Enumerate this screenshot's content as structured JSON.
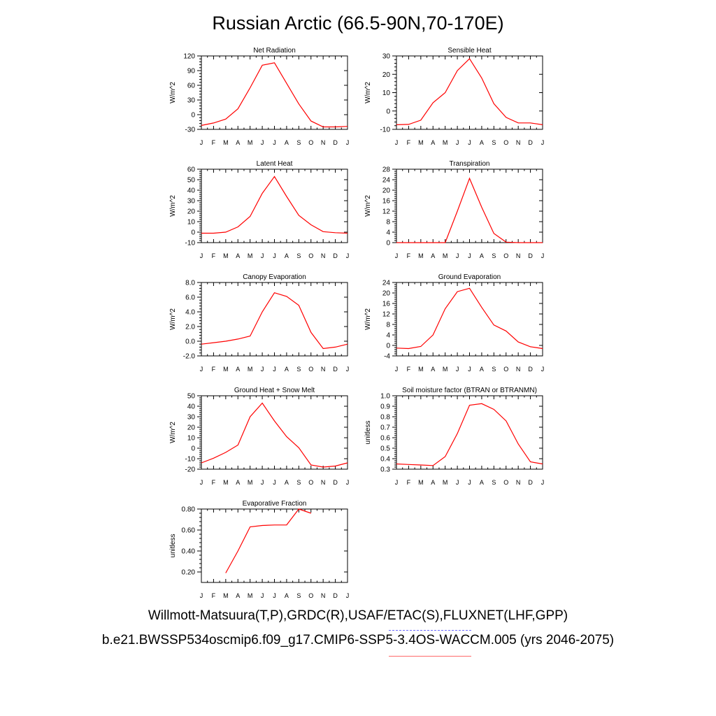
{
  "title": "Russian Arctic (66.5-90N,70-170E)",
  "legend": {
    "observations": "Willmott-Matsuura(T,P),GRDC(R),USAF/ETAC(S),FLUXNET(LHF,GPP)",
    "model": "b.e21.BWSSP534oscmip6.f09_g17.CMIP6-SSP5-3.4OS-WACCM.005 (yrs 2046-2075)",
    "observations_color": "#6b6bff",
    "model_color": "#ff0000"
  },
  "chart_data": [
    {
      "type": "line",
      "title": "Net Radiation",
      "ylabel": "W/m^2",
      "x": [
        "J",
        "F",
        "M",
        "A",
        "M",
        "J",
        "J",
        "A",
        "S",
        "O",
        "N",
        "D",
        "J"
      ],
      "ylim": [
        -30,
        120
      ],
      "yticks": [
        -30,
        0,
        30,
        60,
        90,
        120
      ],
      "ytick_labels": [
        "-30",
        "0",
        "30",
        "60",
        "90",
        "120"
      ],
      "series": [
        {
          "values": [
            -22,
            -17,
            -9,
            12,
            55,
            101,
            106,
            64,
            22,
            -13,
            -25,
            -25,
            -24
          ]
        }
      ]
    },
    {
      "type": "line",
      "title": "Sensible Heat",
      "ylabel": "W/m^2",
      "x": [
        "J",
        "F",
        "M",
        "A",
        "M",
        "J",
        "J",
        "A",
        "S",
        "O",
        "N",
        "D",
        "J"
      ],
      "ylim": [
        -10,
        30
      ],
      "yticks": [
        -10,
        0,
        10,
        20,
        30
      ],
      "ytick_labels": [
        "-10",
        "0",
        "10",
        "20",
        "30"
      ],
      "series": [
        {
          "values": [
            -7.5,
            -7.3,
            -5,
            4.5,
            10,
            22,
            28.5,
            18,
            4,
            -3.5,
            -6.5,
            -6.5,
            -7.5
          ]
        }
      ]
    },
    {
      "type": "line",
      "title": "Latent Heat",
      "ylabel": "W/m^2",
      "x": [
        "J",
        "F",
        "M",
        "A",
        "M",
        "J",
        "J",
        "A",
        "S",
        "O",
        "N",
        "D",
        "J"
      ],
      "ylim": [
        -10,
        60
      ],
      "yticks": [
        -10,
        0,
        10,
        20,
        30,
        40,
        50,
        60
      ],
      "ytick_labels": [
        "-10",
        "0",
        "10",
        "20",
        "30",
        "40",
        "50",
        "60"
      ],
      "series": [
        {
          "values": [
            -1,
            -1,
            0,
            5,
            15,
            37,
            53,
            34,
            16,
            7,
            0.5,
            -0.5,
            -1
          ]
        }
      ]
    },
    {
      "type": "line",
      "title": "Transpiration",
      "ylabel": "W/m^2",
      "x": [
        "J",
        "F",
        "M",
        "A",
        "M",
        "J",
        "J",
        "A",
        "S",
        "O",
        "N",
        "D",
        "J"
      ],
      "ylim": [
        0,
        28
      ],
      "yticks": [
        0,
        4,
        8,
        12,
        16,
        20,
        24,
        28
      ],
      "ytick_labels": [
        "0",
        "4",
        "8",
        "12",
        "16",
        "20",
        "24",
        "28"
      ],
      "series": [
        {
          "values": [
            0,
            0,
            0,
            0,
            0,
            12,
            24.5,
            13.5,
            3.5,
            0.2,
            0,
            0,
            0
          ]
        }
      ]
    },
    {
      "type": "line",
      "title": "Canopy Evaporation",
      "ylabel": "W/m^2",
      "x": [
        "J",
        "F",
        "M",
        "A",
        "M",
        "J",
        "J",
        "A",
        "S",
        "O",
        "N",
        "D",
        "J"
      ],
      "ylim": [
        -2,
        8
      ],
      "yticks": [
        -2,
        0,
        2,
        4,
        6,
        8
      ],
      "ytick_labels": [
        "-2.0",
        "0.0",
        "2.0",
        "4.0",
        "6.0",
        "8.0"
      ],
      "series": [
        {
          "values": [
            -0.4,
            -0.2,
            0,
            0.3,
            0.7,
            4,
            6.6,
            6.1,
            4.9,
            1.2,
            -1,
            -0.8,
            -0.4
          ]
        }
      ]
    },
    {
      "type": "line",
      "title": "Ground Evaporation",
      "ylabel": "W/m^2",
      "x": [
        "J",
        "F",
        "M",
        "A",
        "M",
        "J",
        "J",
        "A",
        "S",
        "O",
        "N",
        "D",
        "J"
      ],
      "ylim": [
        -4,
        24
      ],
      "yticks": [
        -4,
        0,
        4,
        8,
        12,
        16,
        20,
        24
      ],
      "ytick_labels": [
        "-4",
        "0",
        "4",
        "8",
        "12",
        "16",
        "20",
        "24"
      ],
      "series": [
        {
          "values": [
            -1,
            -1.2,
            -0.4,
            4,
            14,
            20.5,
            21.8,
            14.5,
            7.8,
            5.5,
            1.3,
            -0.5,
            -1.2
          ]
        }
      ]
    },
    {
      "type": "line",
      "title": "Ground Heat + Snow Melt",
      "ylabel": "W/m^2",
      "x": [
        "J",
        "F",
        "M",
        "A",
        "M",
        "J",
        "J",
        "A",
        "S",
        "O",
        "N",
        "D",
        "J"
      ],
      "ylim": [
        -20,
        50
      ],
      "yticks": [
        -20,
        -10,
        0,
        10,
        20,
        30,
        40,
        50
      ],
      "ytick_labels": [
        "-20",
        "-10",
        "0",
        "10",
        "20",
        "30",
        "40",
        "50"
      ],
      "series": [
        {
          "values": [
            -14,
            -9.5,
            -4,
            3,
            30,
            43,
            26,
            11,
            0.5,
            -16,
            -18,
            -17,
            -14
          ]
        }
      ]
    },
    {
      "type": "line",
      "title": "Soil moisture factor (BTRAN or BTRANMN)",
      "ylabel": "unitless",
      "x": [
        "J",
        "F",
        "M",
        "A",
        "M",
        "J",
        "J",
        "A",
        "S",
        "O",
        "N",
        "D",
        "J"
      ],
      "ylim": [
        0.3,
        1.0
      ],
      "yticks": [
        0.3,
        0.4,
        0.5,
        0.6,
        0.7,
        0.8,
        0.9,
        1.0
      ],
      "ytick_labels": [
        "0.3",
        "0.4",
        "0.5",
        "0.6",
        "0.7",
        "0.8",
        "0.9",
        "1.0"
      ],
      "series": [
        {
          "values": [
            0.35,
            0.345,
            0.34,
            0.335,
            0.42,
            0.64,
            0.91,
            0.925,
            0.87,
            0.76,
            0.54,
            0.37,
            0.35
          ]
        }
      ]
    },
    {
      "type": "line",
      "title": "Evaporative Fraction",
      "ylabel": "unitless",
      "x": [
        "J",
        "F",
        "M",
        "A",
        "M",
        "J",
        "J",
        "A",
        "S",
        "O",
        "N",
        "D",
        "J"
      ],
      "ylim": [
        0.1,
        0.8
      ],
      "yticks": [
        0.2,
        0.4,
        0.6,
        0.8
      ],
      "ytick_labels": [
        "0.20",
        "0.40",
        "0.60",
        "0.80"
      ],
      "series": [
        {
          "values": [
            null,
            null,
            0.19,
            0.4,
            0.63,
            0.643,
            0.648,
            0.648,
            0.8,
            0.76,
            null,
            null,
            null
          ]
        }
      ]
    }
  ]
}
